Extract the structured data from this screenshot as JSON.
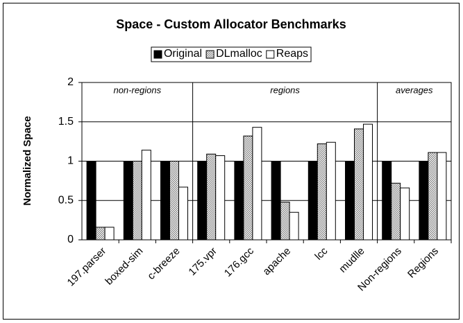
{
  "chart_data": {
    "type": "bar",
    "title": "Space - Custom Allocator Benchmarks",
    "ylabel": "Normalized Space",
    "categories": [
      "197.parser",
      "boxed-sim",
      "c-breeze",
      "175.vpr",
      "176.gcc",
      "apache",
      "lcc",
      "mudlle",
      "Non-regions",
      "Regions"
    ],
    "series": [
      {
        "name": "Original",
        "color": "#000000",
        "values": [
          1,
          1,
          1,
          1,
          1,
          1,
          1,
          1,
          1,
          1
        ]
      },
      {
        "name": "DLmalloc",
        "color": "#808080",
        "pattern": "checker",
        "values": [
          0.16,
          1,
          1,
          1.09,
          1.32,
          0.48,
          1.22,
          1.41,
          0.72,
          1.11
        ]
      },
      {
        "name": "Reaps",
        "color": "#ffffff",
        "values": [
          0.16,
          1.14,
          0.67,
          1.07,
          1.43,
          0.35,
          1.24,
          1.47,
          0.66,
          1.11
        ]
      }
    ],
    "annotations": [
      "non-regions",
      "regions",
      "averages"
    ],
    "ylim": [
      0,
      2
    ],
    "yticks": [
      0,
      0.5,
      1,
      1.5,
      2
    ],
    "grid": true,
    "legend": "top"
  }
}
